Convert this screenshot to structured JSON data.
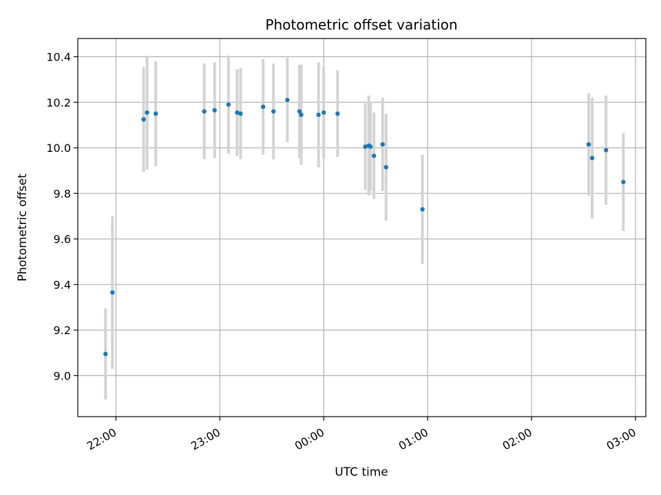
{
  "chart_data": {
    "type": "scatter",
    "title": "Photometric offset variation",
    "xlabel": "UTC time",
    "ylabel": "Photometric offset",
    "x_ticks": [
      "22:00",
      "23:00",
      "00:00",
      "01:00",
      "02:00",
      "03:00"
    ],
    "y_ticks": [
      "9.0",
      "9.2",
      "9.4",
      "9.6",
      "9.8",
      "10.0",
      "10.2",
      "10.4"
    ],
    "ylim": [
      8.82,
      10.48
    ],
    "xlim": [
      "21:38",
      "03:06"
    ],
    "grid": true,
    "colors": {
      "points": "#1f77b4",
      "errorbars": "#d3d3d3",
      "grid": "#b0b0b0"
    },
    "points": [
      {
        "x": "21:54",
        "y": 9.095,
        "err": 0.2
      },
      {
        "x": "21:58",
        "y": 9.365,
        "err": 0.335
      },
      {
        "x": "22:16",
        "y": 10.125,
        "err": 0.23
      },
      {
        "x": "22:18",
        "y": 10.155,
        "err": 0.25
      },
      {
        "x": "22:23",
        "y": 10.15,
        "err": 0.23
      },
      {
        "x": "22:51",
        "y": 10.16,
        "err": 0.21
      },
      {
        "x": "22:57",
        "y": 10.165,
        "err": 0.21
      },
      {
        "x": "23:05",
        "y": 10.19,
        "err": 0.215
      },
      {
        "x": "23:10",
        "y": 10.155,
        "err": 0.19
      },
      {
        "x": "23:12",
        "y": 10.15,
        "err": 0.2
      },
      {
        "x": "23:25",
        "y": 10.18,
        "err": 0.21
      },
      {
        "x": "23:31",
        "y": 10.16,
        "err": 0.21
      },
      {
        "x": "23:39",
        "y": 10.21,
        "err": 0.185
      },
      {
        "x": "23:46",
        "y": 10.16,
        "err": 0.205
      },
      {
        "x": "23:47",
        "y": 10.145,
        "err": 0.22
      },
      {
        "x": "23:57",
        "y": 10.145,
        "err": 0.23
      },
      {
        "x": "00:00",
        "y": 10.155,
        "err": 0.2
      },
      {
        "x": "00:08",
        "y": 10.15,
        "err": 0.19
      },
      {
        "x": "00:24",
        "y": 10.005,
        "err": 0.19
      },
      {
        "x": "00:26",
        "y": 10.01,
        "err": 0.22
      },
      {
        "x": "00:27",
        "y": 10.005,
        "err": 0.195
      },
      {
        "x": "00:29",
        "y": 9.965,
        "err": 0.19
      },
      {
        "x": "00:34",
        "y": 10.015,
        "err": 0.205
      },
      {
        "x": "00:36",
        "y": 9.915,
        "err": 0.235
      },
      {
        "x": "00:57",
        "y": 9.73,
        "err": 0.24
      },
      {
        "x": "02:33",
        "y": 10.015,
        "err": 0.225
      },
      {
        "x": "02:35",
        "y": 9.955,
        "err": 0.265
      },
      {
        "x": "02:43",
        "y": 9.99,
        "err": 0.24
      },
      {
        "x": "02:53",
        "y": 9.85,
        "err": 0.215
      }
    ]
  }
}
